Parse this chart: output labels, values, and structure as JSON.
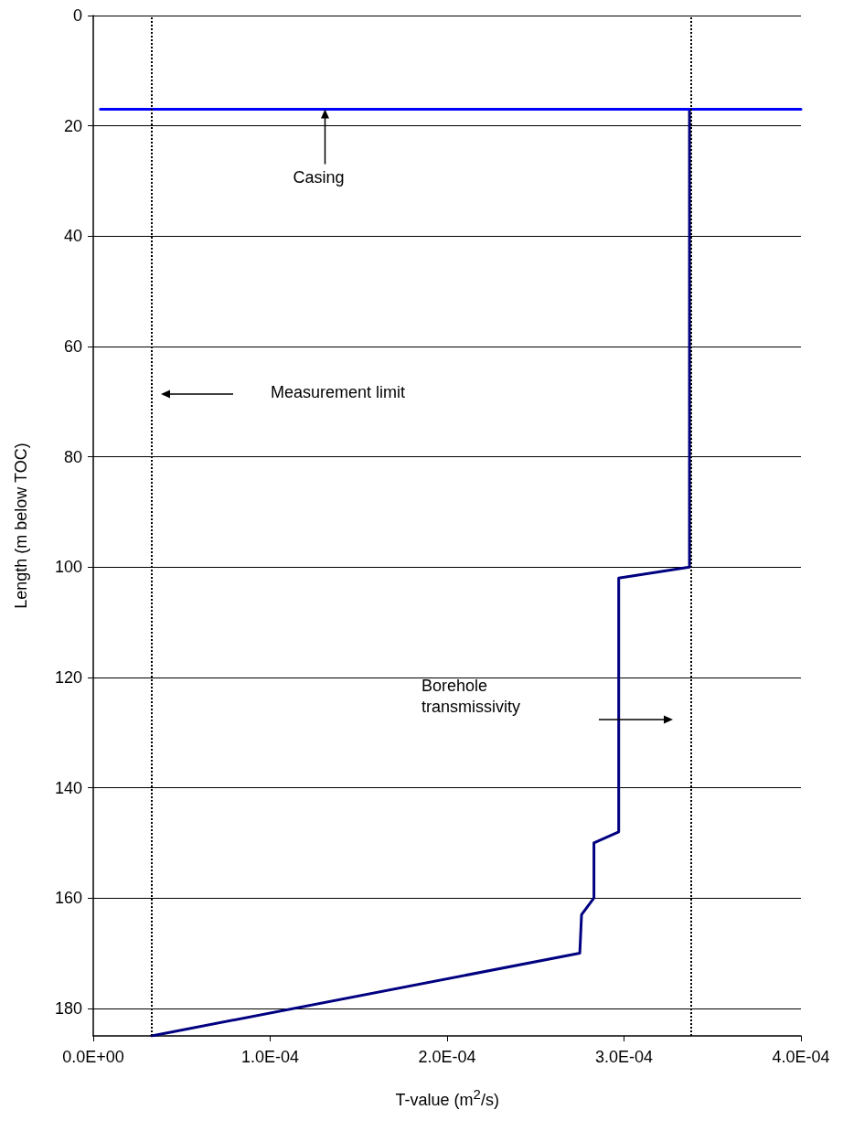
{
  "chart_data": {
    "type": "line",
    "xlabel": "T-value (m$^{2}$/s)",
    "ylabel": "Length (m below TOC)",
    "series": [
      {
        "color": "#000080",
        "x": [
          0.000337,
          0.000337,
          0.000297,
          0.000297,
          0.000283,
          0.000283,
          0.000276,
          0.000275,
          3.3e-05
        ],
        "values": [
          17,
          100,
          102,
          148,
          150,
          160,
          163,
          170,
          185
        ]
      },
      {
        "color": "#0000ff",
        "x": [
          4e-06,
          0.0004
        ],
        "values": [
          17,
          17
        ]
      }
    ],
    "xlim": [
      0,
      0.0004
    ],
    "xticks": [
      {
        "value": 0,
        "label": "0.0E+00"
      },
      {
        "value": 0.0001,
        "label": "1.0E-04"
      },
      {
        "value": 0.0002,
        "label": "2.0E-04"
      },
      {
        "value": 0.0003,
        "label": "3.0E-04"
      },
      {
        "value": 0.0004,
        "label": "4.0E-04"
      }
    ],
    "ylim": [
      185,
      0
    ],
    "yticks": [
      0,
      20,
      40,
      60,
      80,
      100,
      120,
      140,
      160,
      180
    ],
    "ref_lines": [
      {
        "axis": "x",
        "value": 3.3e-05,
        "color": "#000000",
        "line_style": "dotted"
      },
      {
        "axis": "x",
        "value": 0.000338,
        "color": "#000000",
        "line_style": "dotted"
      }
    ],
    "annotations": [
      {
        "text": "Casing",
        "x": 0.000131,
        "y": 17
      },
      "Measurement limit",
      "Borehole\ntransmissivity"
    ],
    "grid": "y",
    "marker": "none",
    "line_style": "solid"
  }
}
